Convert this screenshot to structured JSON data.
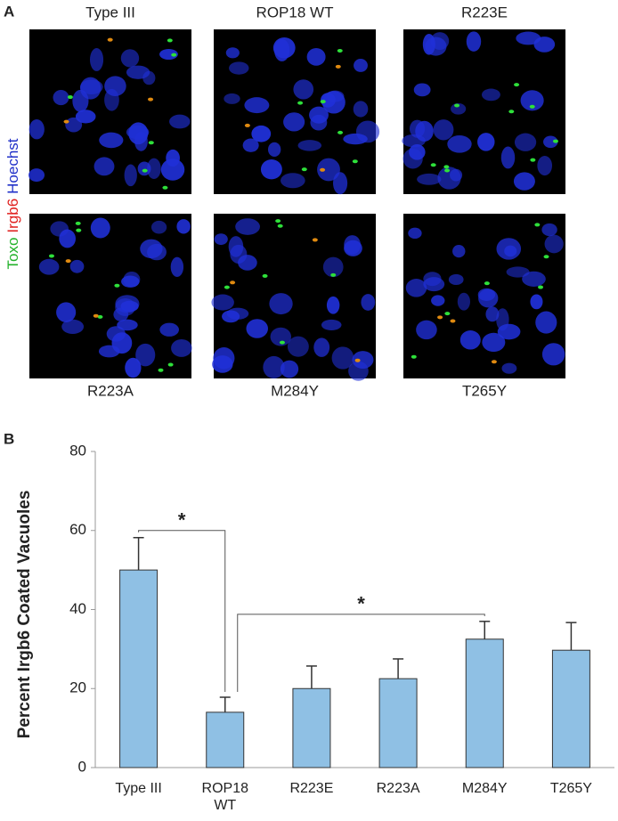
{
  "panel_a": {
    "label": "A",
    "stain_label": [
      {
        "text": "Toxo",
        "color": "#22b22a"
      },
      {
        "text": "Irgb6",
        "color": "#e0201e"
      },
      {
        "text": "Hoechst",
        "color": "#1f2fc8"
      }
    ],
    "images": [
      {
        "label": "Type III"
      },
      {
        "label": "ROP18 WT"
      },
      {
        "label": "R223E"
      },
      {
        "label": "R223A"
      },
      {
        "label": "M284Y"
      },
      {
        "label": "T265Y"
      }
    ]
  },
  "panel_b": {
    "label": "B"
  },
  "chart_data": {
    "type": "bar",
    "y_label": "Percent Irgb6 Coated Vacuoles",
    "categories": [
      "Type III",
      "ROP18 WT",
      "R223E",
      "R223A",
      "M284Y",
      "T265Y"
    ],
    "values": [
      50,
      14,
      20,
      22.5,
      32.5,
      29.7
    ],
    "errors": [
      8.2,
      3.8,
      5.7,
      5,
      4.5,
      7
    ],
    "color": "#8fc0e4",
    "ylim": [
      0,
      80
    ],
    "yticks": [
      0,
      20,
      40,
      60,
      80
    ],
    "significance": [
      {
        "between": [
          "Type III",
          "ROP18 WT"
        ],
        "label": "*"
      },
      {
        "between": [
          "ROP18 WT",
          "M284Y"
        ],
        "label": "*"
      }
    ]
  }
}
